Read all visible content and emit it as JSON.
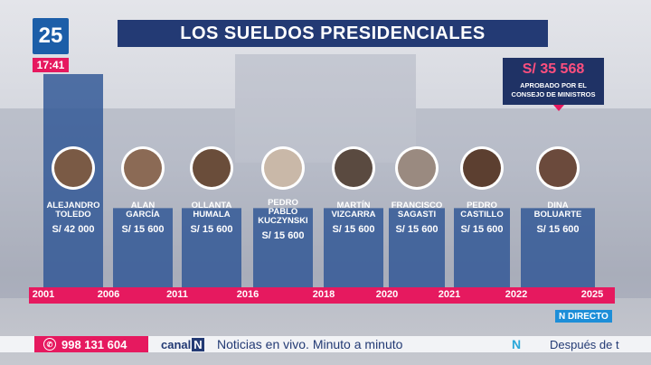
{
  "channel": {
    "logo": "25",
    "time": "17:41"
  },
  "title": "LOS SUELDOS PRESIDENCIALES",
  "callout": {
    "amount": "S/ 35 568",
    "note": "APROBADO POR EL CONSEJO DE MINISTROS"
  },
  "chart_data": {
    "type": "bar",
    "title": "LOS SUELDOS PRESIDENCIALES",
    "unit": "S/",
    "categories": [
      "ALEJANDRO TOLEDO",
      "ALAN GARCÍA",
      "OLLANTA HUMALA",
      "PEDRO PABLO KUCZYNSKI",
      "MARTÍN VIZCARRA",
      "FRANCISCO SAGASTI",
      "PEDRO CASTILLO",
      "DINA BOLUARTE"
    ],
    "name_lines": [
      [
        "ALEJANDRO",
        "TOLEDO"
      ],
      [
        "ALAN",
        "GARCÍA"
      ],
      [
        "OLLANTA",
        "HUMALA"
      ],
      [
        "PEDRO",
        "PABLO",
        "KUCZYNSKI"
      ],
      [
        "MARTÍN",
        "VIZCARRA"
      ],
      [
        "FRANCISCO",
        "SAGASTI"
      ],
      [
        "PEDRO",
        "CASTILLO"
      ],
      [
        "DINA",
        "BOLUARTE"
      ]
    ],
    "values": [
      42000,
      15600,
      15600,
      15600,
      15600,
      15600,
      15600,
      15600
    ],
    "value_labels": [
      "S/ 42 000",
      "S/ 15 600",
      "S/ 15 600",
      "S/ 15 600",
      "S/ 15 600",
      "S/ 15 600",
      "S/ 15 600",
      "S/ 15 600"
    ],
    "years": [
      "2001",
      "2006",
      "2011",
      "2016",
      "2018",
      "2020",
      "2021",
      "2022",
      "2025"
    ],
    "ylim": [
      0,
      42000
    ]
  },
  "directo": "N DIRECTO",
  "ticker": {
    "phone": "998 131 604",
    "logo": "canal",
    "logo_n": "N",
    "text": "Noticias en vivo. Minuto a minuto",
    "n_mark": "N",
    "next": "Después de t"
  }
}
